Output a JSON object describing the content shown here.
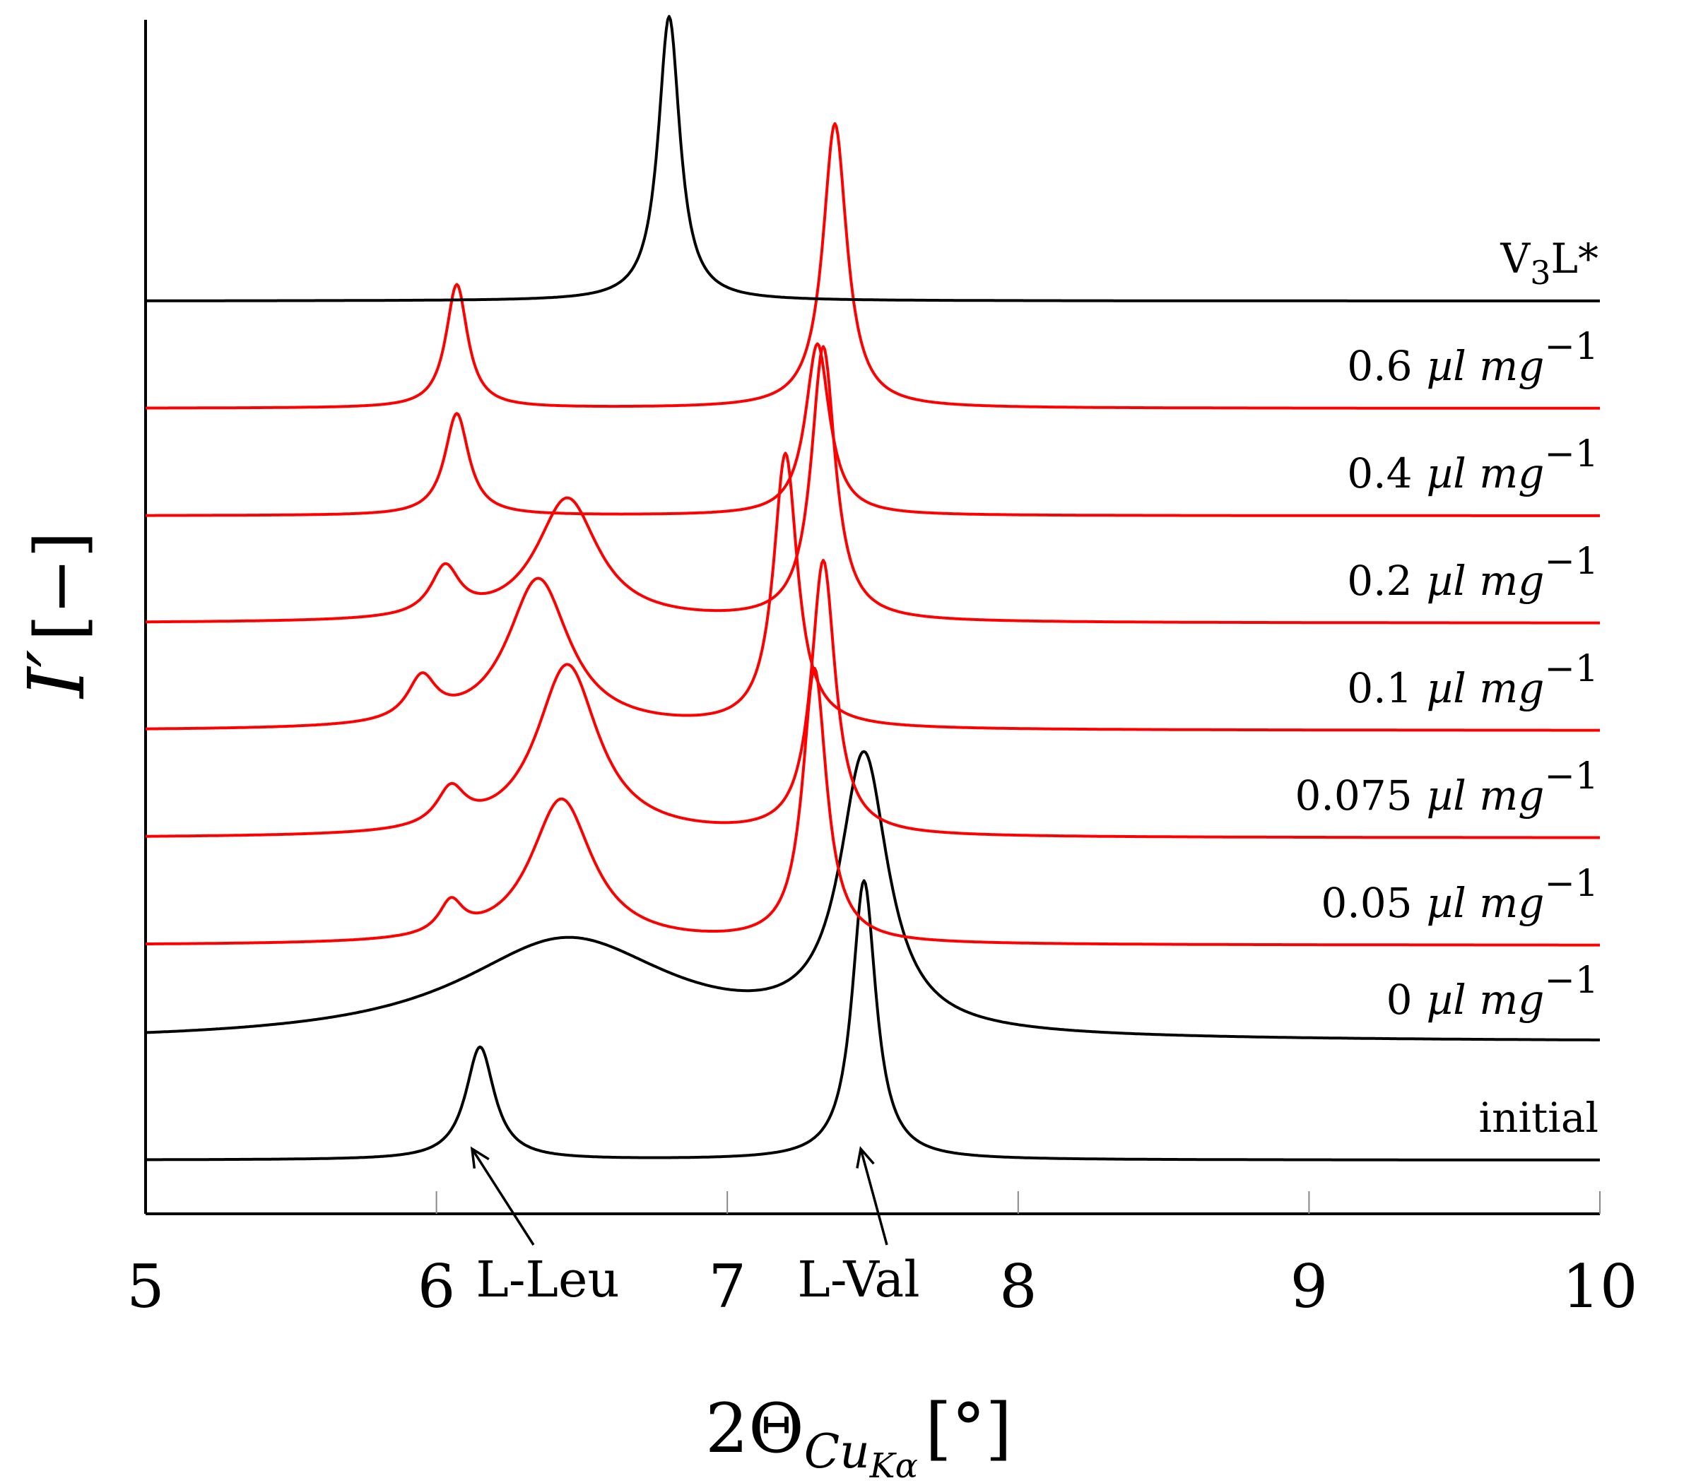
{
  "chart_data": {
    "type": "line",
    "subtype": "stacked-offset diffraction patterns (waterfall)",
    "xlabel": "2ΘCuKα [°]",
    "xlabel_parts": {
      "main": "2Θ",
      "sub": "Cu",
      "subsub": "Kα",
      "unit": "[°]"
    },
    "ylabel": "I′ [−]",
    "ylabel_parts": {
      "main": "I′",
      "unit": "[−]"
    },
    "xlim": [
      5,
      10
    ],
    "xticks": [
      5,
      6,
      7,
      8,
      9,
      10
    ],
    "xtick_labels": [
      "5",
      "6",
      "7",
      "8",
      "9",
      "10"
    ],
    "yticks": [],
    "grid": false,
    "colors": {
      "black": "#000000",
      "red": "#ff0000"
    },
    "series": [
      {
        "name": "initial",
        "color": "#000000",
        "baseline": 0,
        "peaks": [
          {
            "x": 6.15,
            "h": 1.05,
            "w": 0.06
          },
          {
            "x": 7.47,
            "h": 2.6,
            "w": 0.05
          }
        ]
      },
      {
        "name": "0 µl mg−1",
        "color": "#000000",
        "baseline": 1.1,
        "peaks": [
          {
            "x": 6.45,
            "h": 0.95,
            "w": 0.45
          },
          {
            "x": 7.47,
            "h": 2.55,
            "w": 0.1
          }
        ]
      },
      {
        "name": "0.05 µl mg−1",
        "color": "#ff0000",
        "baseline": 2.0,
        "peaks": [
          {
            "x": 6.05,
            "h": 0.3,
            "w": 0.05
          },
          {
            "x": 6.43,
            "h": 1.35,
            "w": 0.13
          },
          {
            "x": 7.3,
            "h": 2.55,
            "w": 0.05
          }
        ]
      },
      {
        "name": "0.075 µl mg−1",
        "color": "#ff0000",
        "baseline": 3.0,
        "peaks": [
          {
            "x": 6.05,
            "h": 0.35,
            "w": 0.06
          },
          {
            "x": 6.45,
            "h": 1.6,
            "w": 0.13
          },
          {
            "x": 7.33,
            "h": 2.55,
            "w": 0.05
          }
        ]
      },
      {
        "name": "0.1 µl mg−1",
        "color": "#ff0000",
        "baseline": 4.0,
        "peaks": [
          {
            "x": 5.95,
            "h": 0.4,
            "w": 0.06
          },
          {
            "x": 6.35,
            "h": 1.4,
            "w": 0.13
          },
          {
            "x": 7.2,
            "h": 2.55,
            "w": 0.05
          }
        ]
      },
      {
        "name": "0.2 µl mg−1",
        "color": "#ff0000",
        "baseline": 5.0,
        "peaks": [
          {
            "x": 6.03,
            "h": 0.45,
            "w": 0.06
          },
          {
            "x": 6.45,
            "h": 1.15,
            "w": 0.13
          },
          {
            "x": 7.33,
            "h": 2.55,
            "w": 0.05
          }
        ]
      },
      {
        "name": "0.4 µl mg−1",
        "color": "#ff0000",
        "baseline": 6.0,
        "peaks": [
          {
            "x": 6.07,
            "h": 0.95,
            "w": 0.05
          },
          {
            "x": 7.31,
            "h": 1.6,
            "w": 0.05
          }
        ]
      },
      {
        "name": "0.6 µl mg−1",
        "color": "#ff0000",
        "baseline": 7.0,
        "peaks": [
          {
            "x": 6.07,
            "h": 1.15,
            "w": 0.045
          },
          {
            "x": 7.37,
            "h": 2.65,
            "w": 0.05
          }
        ]
      },
      {
        "name": "V3L*",
        "color": "#000000",
        "baseline": 8.0,
        "peaks": [
          {
            "x": 6.8,
            "h": 2.65,
            "w": 0.045
          }
        ]
      }
    ],
    "series_labels": [
      {
        "series": "initial",
        "text": "initial"
      },
      {
        "series": "0 µl mg−1",
        "value": "0",
        "unit": "µl mg",
        "exp": "−1"
      },
      {
        "series": "0.05 µl mg−1",
        "value": "0.05",
        "unit": "µl mg",
        "exp": "−1"
      },
      {
        "series": "0.075 µl mg−1",
        "value": "0.075",
        "unit": "µl mg",
        "exp": "−1"
      },
      {
        "series": "0.1 µl mg−1",
        "value": "0.1",
        "unit": "µl mg",
        "exp": "−1"
      },
      {
        "series": "0.2 µl mg−1",
        "value": "0.2",
        "unit": "µl mg",
        "exp": "−1"
      },
      {
        "series": "0.4 µl mg−1",
        "value": "0.4",
        "unit": "µl mg",
        "exp": "−1"
      },
      {
        "series": "0.6 µl mg−1",
        "value": "0.6",
        "unit": "µl mg",
        "exp": "−1"
      },
      {
        "series": "V3L*",
        "text": "V",
        "sub": "3",
        "rest": "L*"
      }
    ],
    "annotations": [
      {
        "text": "L-Leu",
        "points_to_x": 6.12,
        "arrow": true
      },
      {
        "text": "L-Val",
        "points_to_x": 7.47,
        "arrow": true
      }
    ]
  }
}
